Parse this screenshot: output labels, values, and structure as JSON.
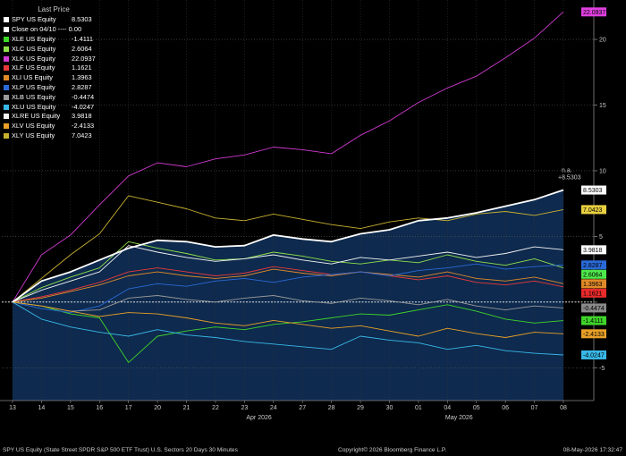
{
  "chart_data": {
    "type": "line",
    "legend_title": "Last Price",
    "legend_position": "top-left",
    "ylim": [
      -7.5,
      23
    ],
    "yticks": [
      -5,
      0,
      5,
      10,
      15,
      20
    ],
    "ytick_labels": [
      "-5",
      "",
      "5",
      "10",
      "15",
      "20"
    ],
    "xtick_labels": [
      "13",
      "14",
      "15",
      "16",
      "17",
      "20",
      "21",
      "22",
      "23",
      "24",
      "27",
      "28",
      "29",
      "30",
      "01",
      "04",
      "05",
      "06",
      "07",
      "08"
    ],
    "month_labels": [
      {
        "text": "Apr 2026",
        "at": 8.5
      },
      {
        "text": "May 2026",
        "at": 15.4
      }
    ],
    "grid": true,
    "annotation": {
      "line1": "n.a.",
      "line2": "+8.5303"
    },
    "series": [
      {
        "name": "SPY US Equity",
        "last": "8.5303",
        "color": "#ffffff",
        "tag_bg": "#ffffff",
        "tag_fg": "#000000",
        "area": true,
        "values": [
          0,
          1.6,
          2.3,
          3.2,
          4.1,
          4.7,
          4.6,
          4.2,
          4.3,
          5.1,
          4.8,
          4.6,
          5.2,
          5.5,
          6.2,
          6.4,
          6.8,
          7.3,
          7.8,
          8.5303
        ]
      },
      {
        "name": "Close on 04/10 ---- 0.00",
        "last": "",
        "color": "#ffffff",
        "dashed": true,
        "constant": 0
      },
      {
        "name": "XLE US Equity",
        "last": "-1.4111",
        "color": "#3fd52a",
        "tag_bg": "#3fd52a",
        "tag_fg": "#000000",
        "values": [
          0,
          -0.3,
          -0.9,
          -1.2,
          -4.6,
          -2.6,
          -2.2,
          -1.9,
          -2.1,
          -1.7,
          -1.5,
          -1.2,
          -0.9,
          -1.0,
          -0.6,
          -0.2,
          -0.7,
          -1.3,
          -1.6,
          -1.4111
        ]
      },
      {
        "name": "XLC US Equity",
        "last": "2.6064",
        "color": "#8ee04a",
        "tag_bg": "#4ee84a",
        "tag_fg": "#000000",
        "values": [
          0,
          1.1,
          1.9,
          2.6,
          4.6,
          4.1,
          3.7,
          3.2,
          3.3,
          3.8,
          3.5,
          3.1,
          2.9,
          3.2,
          3.0,
          3.6,
          3.1,
          2.8,
          3.3,
          2.6064
        ]
      },
      {
        "name": "XLK US Equity",
        "last": "22.0937",
        "color": "#d23ad2",
        "tag_bg": "#e040e0",
        "tag_fg": "#000000",
        "values": [
          0,
          3.6,
          5.1,
          7.4,
          9.6,
          10.6,
          10.3,
          10.9,
          11.2,
          11.8,
          11.6,
          11.3,
          12.7,
          13.8,
          15.2,
          16.3,
          17.2,
          18.6,
          20.1,
          22.0937
        ]
      },
      {
        "name": "XLF US Equity",
        "last": "1.1621",
        "color": "#e83a3a",
        "tag_bg": "#e82a2a",
        "tag_fg": "#000000",
        "values": [
          0,
          0.4,
          0.9,
          1.5,
          2.3,
          2.6,
          2.3,
          2.0,
          2.2,
          2.7,
          2.4,
          2.1,
          2.3,
          2.0,
          1.7,
          2.0,
          1.5,
          1.3,
          1.6,
          1.1621
        ]
      },
      {
        "name": "XLI US Equity",
        "last": "1.3963",
        "color": "#e08a28",
        "tag_bg": "#e08a28",
        "tag_fg": "#000000",
        "values": [
          0,
          0.3,
          0.8,
          1.3,
          2.0,
          2.3,
          2.0,
          1.8,
          2.0,
          2.5,
          2.2,
          2.0,
          2.3,
          2.1,
          1.9,
          2.3,
          1.8,
          1.6,
          1.9,
          1.3963
        ]
      },
      {
        "name": "XLP US Equity",
        "last": "2.8287",
        "color": "#2a6ad8",
        "tag_bg": "#2a6ad8",
        "tag_fg": "#000000",
        "values": [
          0,
          -0.5,
          -0.8,
          -0.3,
          1.0,
          1.4,
          1.2,
          1.6,
          1.8,
          1.5,
          1.9,
          2.1,
          2.3,
          2.0,
          2.4,
          2.6,
          2.9,
          2.5,
          2.7,
          2.8287
        ]
      },
      {
        "name": "XLB US Equity",
        "last": "-0.4474",
        "color": "#9a9a9a",
        "tag_bg": "#8a8a8a",
        "tag_fg": "#000000",
        "values": [
          0,
          -0.3,
          -0.7,
          -0.6,
          0.3,
          0.5,
          0.2,
          0.0,
          0.3,
          0.5,
          0.1,
          -0.1,
          0.3,
          0.1,
          -0.2,
          0.2,
          -0.3,
          -0.6,
          -0.3,
          -0.4474
        ]
      },
      {
        "name": "XLU US Equity",
        "last": "-4.0247",
        "color": "#38b8e8",
        "tag_bg": "#38b8e8",
        "tag_fg": "#000000",
        "values": [
          0,
          -1.3,
          -1.9,
          -2.3,
          -2.6,
          -2.1,
          -2.5,
          -2.7,
          -3.0,
          -3.2,
          -3.4,
          -3.6,
          -2.6,
          -2.9,
          -3.1,
          -3.6,
          -3.3,
          -3.7,
          -3.9,
          -4.0247
        ]
      },
      {
        "name": "XLRE US Equity",
        "last": "3.9818",
        "color": "#f4f4f4",
        "tag_bg": "#ffffff",
        "tag_fg": "#000000",
        "values": [
          0,
          0.9,
          1.6,
          2.3,
          4.3,
          3.8,
          3.4,
          3.1,
          3.3,
          3.6,
          3.2,
          2.9,
          3.4,
          3.2,
          3.5,
          3.8,
          3.4,
          3.7,
          4.2,
          3.9818
        ]
      },
      {
        "name": "XLV US Equity",
        "last": "-2.4133",
        "color": "#e8a028",
        "tag_bg": "#e8a028",
        "tag_fg": "#000000",
        "values": [
          0,
          -0.3,
          -0.7,
          -1.1,
          -0.8,
          -0.9,
          -1.2,
          -1.6,
          -1.8,
          -1.4,
          -1.7,
          -2.0,
          -1.8,
          -2.2,
          -2.6,
          -2.0,
          -2.4,
          -2.7,
          -2.3,
          -2.4133
        ]
      },
      {
        "name": "XLY US Equity",
        "last": "7.0423",
        "color": "#c8b030",
        "tag_bg": "#e8d040",
        "tag_fg": "#000000",
        "values": [
          0,
          1.8,
          3.6,
          5.2,
          8.1,
          7.6,
          7.1,
          6.4,
          6.2,
          6.7,
          6.3,
          5.9,
          5.6,
          6.1,
          6.4,
          6.2,
          6.7,
          6.9,
          6.6,
          7.0423
        ]
      }
    ]
  },
  "footer": {
    "left": "SPY US Equity (State Street SPDR S&P 500 ETF Trust) U.S. Sectors 20 Days 30 Minutes",
    "center": "Copyright© 2026 Bloomberg Finance L.P.",
    "right": "08-May-2026 17:32:47"
  }
}
